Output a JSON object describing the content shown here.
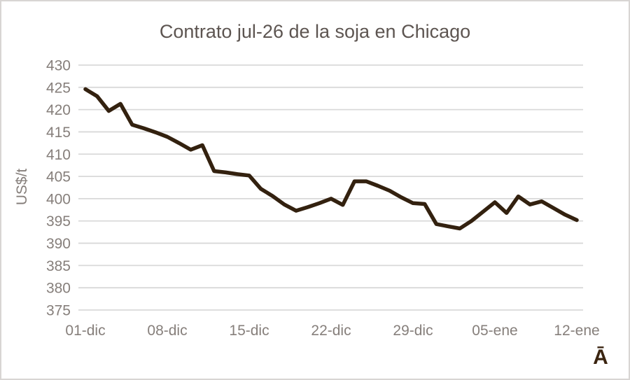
{
  "chart_data": {
    "type": "line",
    "title": "Contrato jul-26 de la soja en Chicago",
    "xlabel": "",
    "ylabel": "US$/t",
    "corner_glyph": "Ā",
    "categories": [
      "01-dic",
      "02-dic",
      "03-dic",
      "04-dic",
      "05-dic",
      "06-dic",
      "07-dic",
      "08-dic",
      "09-dic",
      "10-dic",
      "11-dic",
      "12-dic",
      "13-dic",
      "14-dic",
      "15-dic",
      "16-dic",
      "17-dic",
      "18-dic",
      "19-dic",
      "20-dic",
      "21-dic",
      "22-dic",
      "23-dic",
      "24-dic",
      "25-dic",
      "26-dic",
      "27-dic",
      "28-dic",
      "29-dic",
      "30-dic",
      "31-dic",
      "01-ene",
      "02-ene",
      "03-ene",
      "04-ene",
      "05-ene",
      "06-ene",
      "07-ene",
      "08-ene",
      "09-ene",
      "10-ene",
      "11-ene",
      "12-ene"
    ],
    "values": [
      424.6,
      423.0,
      419.7,
      421.3,
      416.6,
      415.8,
      414.9,
      413.9,
      412.5,
      411.0,
      412.0,
      406.2,
      405.9,
      405.5,
      405.2,
      402.2,
      400.6,
      398.7,
      397.3,
      398.1,
      399.0,
      400.0,
      398.6,
      403.9,
      403.9,
      402.9,
      401.8,
      400.3,
      399.0,
      398.8,
      394.3,
      393.8,
      393.3,
      395.0,
      397.1,
      399.2,
      396.8,
      400.5,
      398.7,
      399.4,
      397.9,
      396.4,
      395.2
    ],
    "x_tick_indices": [
      0,
      7,
      14,
      21,
      28,
      35,
      42
    ],
    "x_tick_labels": [
      "01-dic",
      "08-dic",
      "15-dic",
      "22-dic",
      "29-dic",
      "05-ene",
      "12-ene"
    ],
    "ylim": [
      375,
      430
    ],
    "ytick_step": 5,
    "ytick_labels": [
      "375",
      "380",
      "385",
      "390",
      "395",
      "400",
      "405",
      "410",
      "415",
      "420",
      "425",
      "430"
    ],
    "grid": "horizontal",
    "legend": "none",
    "colors": {
      "line": "#33210f",
      "grid": "#d9d9d9",
      "tick_label": "#867f7b",
      "title": "#5d5551",
      "corner_glyph": "#3a2410",
      "background": "#ffffff",
      "border": "#d8d5d3"
    }
  }
}
